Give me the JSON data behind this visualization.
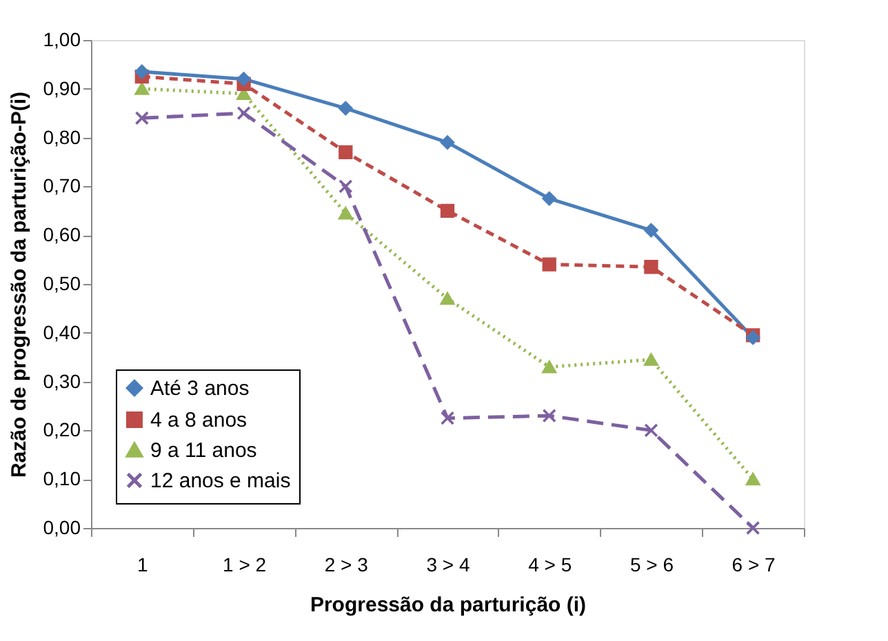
{
  "chart_data": {
    "type": "line",
    "xlabel": "Progressão da parturição  (i)",
    "ylabel": "Razão de progressão da parturição-P(i)",
    "categories": [
      "1",
      "1 > 2",
      "2 > 3",
      "3 > 4",
      "4 > 5",
      "5 > 6",
      "6 > 7"
    ],
    "ylim": [
      0,
      1
    ],
    "yticks": [
      {
        "value": 0,
        "label": "0,00"
      },
      {
        "value": 0.1,
        "label": "0,10"
      },
      {
        "value": 0.2,
        "label": "0,20"
      },
      {
        "value": 0.3,
        "label": "0,30"
      },
      {
        "value": 0.4,
        "label": "0,40"
      },
      {
        "value": 0.5,
        "label": "0,50"
      },
      {
        "value": 0.6,
        "label": "0,60"
      },
      {
        "value": 0.7,
        "label": "0,70"
      },
      {
        "value": 0.8,
        "label": "0,80"
      },
      {
        "value": 0.9,
        "label": "0,90"
      },
      {
        "value": 1,
        "label": "1,00"
      }
    ],
    "grid": false,
    "legend": "bottom left",
    "series": [
      {
        "name": "Até 3 anos",
        "color": "#4a7ebb",
        "line_style": "solid",
        "marker": "diamond",
        "values": [
          0.935,
          0.92,
          0.86,
          0.79,
          0.675,
          0.61,
          0.39
        ]
      },
      {
        "name": "4 a 8 anos",
        "color": "#be4b48",
        "line_style": "dashed",
        "marker": "square",
        "values": [
          0.925,
          0.91,
          0.77,
          0.65,
          0.54,
          0.535,
          0.395
        ]
      },
      {
        "name": "9 a 11 anos",
        "color": "#98b954",
        "line_style": "dotted",
        "marker": "triangle",
        "values": [
          0.9,
          0.89,
          0.645,
          0.47,
          0.33,
          0.345,
          0.1
        ]
      },
      {
        "name": "12 anos e mais",
        "color": "#7d60a0",
        "line_style": "longdash",
        "marker": "cross",
        "values": [
          0.84,
          0.85,
          0.7,
          0.225,
          0.23,
          0.2,
          0.0
        ]
      }
    ]
  }
}
